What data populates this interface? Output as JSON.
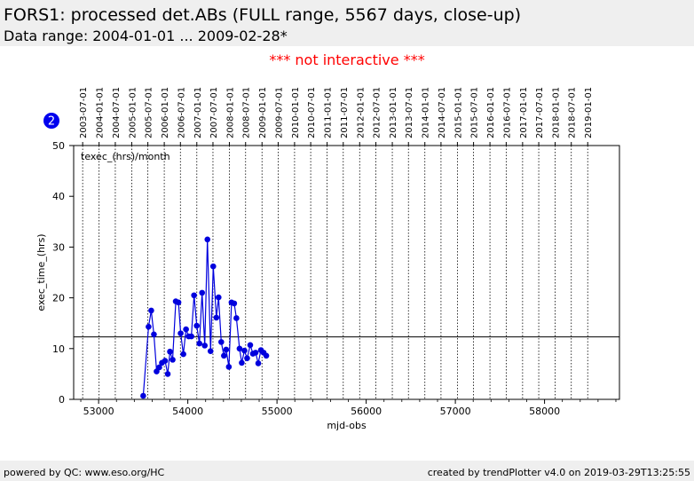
{
  "header": {
    "title": "FORS1: processed det.ABs (FULL range, 5567 days, close-up)",
    "subtitle": "Data range: 2004-01-01 ... 2009-02-28*"
  },
  "notice": "*** not interactive ***",
  "badge": {
    "label": "2",
    "color": "#0000ee"
  },
  "footer": {
    "left": "powered by QC: www.eso.org/HC",
    "right": "created by trendPlotter v4.0 on 2019-03-29T13:25:55"
  },
  "chart_data": {
    "type": "line",
    "xlabel": "mjd-obs",
    "ylabel": "exec_time_(hrs)",
    "annotation": "texec_(hrs)/month",
    "xlim": [
      52720,
      58840
    ],
    "ylim": [
      0,
      50
    ],
    "x_ticks": [
      53000,
      54000,
      55000,
      56000,
      57000,
      58000
    ],
    "y_ticks": [
      0,
      10,
      20,
      30,
      40,
      50
    ],
    "reference_line_y": 12.3,
    "top_axis_dates": [
      {
        "label": "2003-07-01",
        "mjd": 52821
      },
      {
        "label": "2004-01-01",
        "mjd": 53005
      },
      {
        "label": "2004-07-01",
        "mjd": 53187
      },
      {
        "label": "2005-01-01",
        "mjd": 53371
      },
      {
        "label": "2005-07-01",
        "mjd": 53552
      },
      {
        "label": "2006-01-01",
        "mjd": 53736
      },
      {
        "label": "2006-07-01",
        "mjd": 53917
      },
      {
        "label": "2007-01-01",
        "mjd": 54101
      },
      {
        "label": "2007-07-01",
        "mjd": 54282
      },
      {
        "label": "2008-01-01",
        "mjd": 54466
      },
      {
        "label": "2008-07-01",
        "mjd": 54648
      },
      {
        "label": "2009-01-01",
        "mjd": 54832
      },
      {
        "label": "2009-07-01",
        "mjd": 55013
      },
      {
        "label": "2010-01-01",
        "mjd": 55197
      },
      {
        "label": "2010-07-01",
        "mjd": 55378
      },
      {
        "label": "2011-01-01",
        "mjd": 55562
      },
      {
        "label": "2011-07-01",
        "mjd": 55743
      },
      {
        "label": "2012-01-01",
        "mjd": 55927
      },
      {
        "label": "2012-07-01",
        "mjd": 56109
      },
      {
        "label": "2013-01-01",
        "mjd": 56293
      },
      {
        "label": "2013-07-01",
        "mjd": 56474
      },
      {
        "label": "2014-01-01",
        "mjd": 56658
      },
      {
        "label": "2014-07-01",
        "mjd": 56839
      },
      {
        "label": "2015-01-01",
        "mjd": 57023
      },
      {
        "label": "2015-07-01",
        "mjd": 57204
      },
      {
        "label": "2016-01-01",
        "mjd": 57388
      },
      {
        "label": "2016-07-01",
        "mjd": 57570
      },
      {
        "label": "2017-01-01",
        "mjd": 57754
      },
      {
        "label": "2017-07-01",
        "mjd": 57935
      },
      {
        "label": "2018-01-01",
        "mjd": 58119
      },
      {
        "label": "2018-07-01",
        "mjd": 58300
      },
      {
        "label": "2019-01-01",
        "mjd": 58484
      }
    ],
    "series": [
      {
        "color": "#0000dd",
        "x": [
          53500,
          53560,
          53590,
          53620,
          53650,
          53680,
          53710,
          53745,
          53775,
          53800,
          53830,
          53865,
          53895,
          53920,
          53950,
          53980,
          54010,
          54040,
          54070,
          54100,
          54130,
          54160,
          54190,
          54220,
          54255,
          54285,
          54320,
          54345,
          54375,
          54405,
          54430,
          54460,
          54490,
          54520,
          54545,
          54580,
          54605,
          54635,
          54665,
          54700,
          54730,
          54760,
          54790,
          54820,
          54850,
          54880
        ],
        "y": [
          0.7,
          14.3,
          17.5,
          12.8,
          5.5,
          6.3,
          7.2,
          7.6,
          5.0,
          9.4,
          7.8,
          19.3,
          19.1,
          13.0,
          8.9,
          13.8,
          12.4,
          12.4,
          20.5,
          14.5,
          11.0,
          21.0,
          10.6,
          31.5,
          9.5,
          26.2,
          16.1,
          20.1,
          11.3,
          8.6,
          9.8,
          6.4,
          19.1,
          18.9,
          16.0,
          10.0,
          7.2,
          9.6,
          8.1,
          10.7,
          9.0,
          9.2,
          7.1,
          9.7,
          9.2,
          8.6
        ]
      }
    ]
  }
}
